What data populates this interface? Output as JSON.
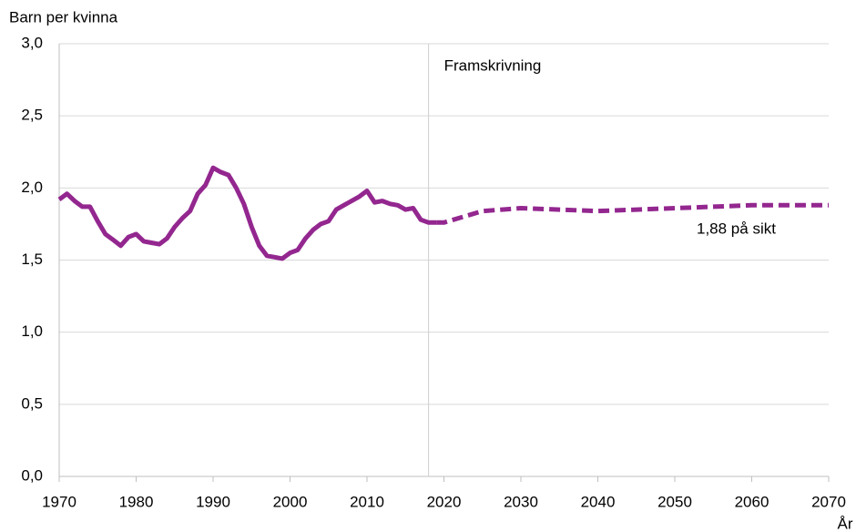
{
  "chart_data": {
    "type": "line",
    "y_axis_label": "Barn per kvinna",
    "x_axis_label": "År",
    "annotations": [
      "Framskrivning",
      "1,88 på sikt"
    ],
    "projection_start": 2018,
    "series": [
      {
        "color": "#93278f",
        "dashed": false,
        "x": [
          1970,
          1971,
          1972,
          1973,
          1974,
          1975,
          1976,
          1977,
          1978,
          1979,
          1980,
          1981,
          1982,
          1983,
          1984,
          1985,
          1986,
          1987,
          1988,
          1989,
          1990,
          1991,
          1992,
          1993,
          1994,
          1995,
          1996,
          1997,
          1998,
          1999,
          2000,
          2001,
          2002,
          2003,
          2004,
          2005,
          2006,
          2007,
          2008,
          2009,
          2010,
          2011,
          2012,
          2013,
          2014,
          2015,
          2016,
          2017,
          2018,
          2019
        ],
        "values": [
          1.92,
          1.96,
          1.91,
          1.87,
          1.87,
          1.77,
          1.68,
          1.64,
          1.6,
          1.66,
          1.68,
          1.63,
          1.62,
          1.61,
          1.65,
          1.73,
          1.79,
          1.84,
          1.96,
          2.02,
          2.14,
          2.11,
          2.09,
          2.0,
          1.89,
          1.73,
          1.6,
          1.53,
          1.52,
          1.51,
          1.55,
          1.57,
          1.65,
          1.71,
          1.75,
          1.77,
          1.85,
          1.88,
          1.91,
          1.94,
          1.98,
          1.9,
          1.91,
          1.89,
          1.88,
          1.85,
          1.86,
          1.78,
          1.76,
          1.76
        ]
      },
      {
        "color": "#93278f",
        "dashed": true,
        "x": [
          2019,
          2020,
          2025,
          2030,
          2035,
          2040,
          2045,
          2050,
          2055,
          2060,
          2065,
          2070
        ],
        "values": [
          1.76,
          1.76,
          1.84,
          1.86,
          1.85,
          1.84,
          1.85,
          1.86,
          1.87,
          1.88,
          1.88,
          1.88
        ]
      }
    ],
    "xlim": [
      1970,
      2070
    ],
    "xticks": [
      1970,
      1980,
      1990,
      2000,
      2010,
      2020,
      2030,
      2040,
      2050,
      2060,
      2070
    ],
    "ylim": [
      0,
      3
    ],
    "yticks": [
      {
        "value": 0,
        "label": "0,0"
      },
      {
        "value": 0.5,
        "label": "0,5"
      },
      {
        "value": 1,
        "label": "1,0"
      },
      {
        "value": 1.5,
        "label": "1,5"
      },
      {
        "value": 2,
        "label": "2,0"
      },
      {
        "value": 2.5,
        "label": "2,5"
      },
      {
        "value": 3,
        "label": "3,0"
      }
    ],
    "grid": true
  }
}
